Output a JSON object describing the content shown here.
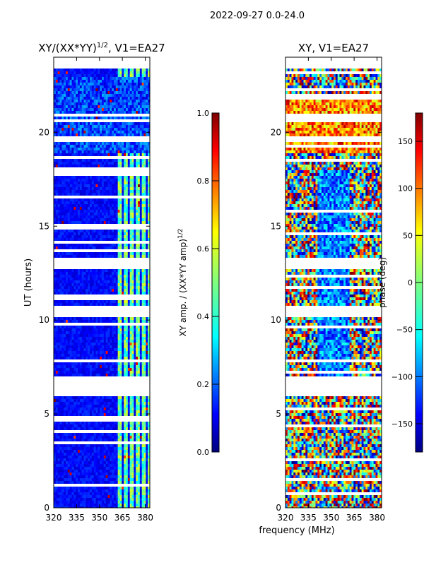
{
  "figure": {
    "suptitle": "2022-09-27 0.0-24.0",
    "shared_xlabel": "frequency (MHz)"
  },
  "chart_data": [
    {
      "type": "heatmap",
      "title": "XY/(XX*YY)^1/2, V1=EA27",
      "title_main": "XY/(XX*YY)",
      "title_exp": "1/2",
      "title_suffix": ", V1=EA27",
      "ylabel": "UT (hours)",
      "xlim": [
        320,
        383
      ],
      "ylim": [
        0,
        24
      ],
      "xticks": [
        320,
        335,
        350,
        365,
        380
      ],
      "yticks": [
        0,
        5,
        10,
        15,
        20
      ],
      "colorbar": {
        "label_main": "XY amp. / (XX*YY amp)",
        "label_exp": "1/2",
        "range": [
          0.0,
          1.0
        ],
        "ticks": [
          "0.0",
          "0.2",
          "0.4",
          "0.6",
          "0.8",
          "1.0"
        ],
        "tick_values": [
          0.0,
          0.2,
          0.4,
          0.6,
          0.8,
          1.0
        ]
      }
    },
    {
      "type": "heatmap",
      "title": "XY, V1=EA27",
      "ylabel": "",
      "xlim": [
        320,
        383
      ],
      "ylim": [
        0,
        24
      ],
      "xticks": [
        320,
        335,
        350,
        365,
        380
      ],
      "yticks": [
        0,
        5,
        10,
        15,
        20
      ],
      "colorbar": {
        "label": "phase (deg)",
        "range": [
          -180,
          180
        ],
        "ticks": [
          "−150",
          "−100",
          "−50",
          "0",
          "50",
          "100",
          "150"
        ],
        "tick_values": [
          -150,
          -100,
          -50,
          0,
          50,
          100,
          150
        ]
      }
    }
  ],
  "colors": {
    "jet": [
      "#00007f",
      "#0000ff",
      "#007fff",
      "#00ffff",
      "#7fff7f",
      "#ffff00",
      "#ff7f00",
      "#ff0000",
      "#7f0000"
    ],
    "gap": "#ffffff"
  }
}
